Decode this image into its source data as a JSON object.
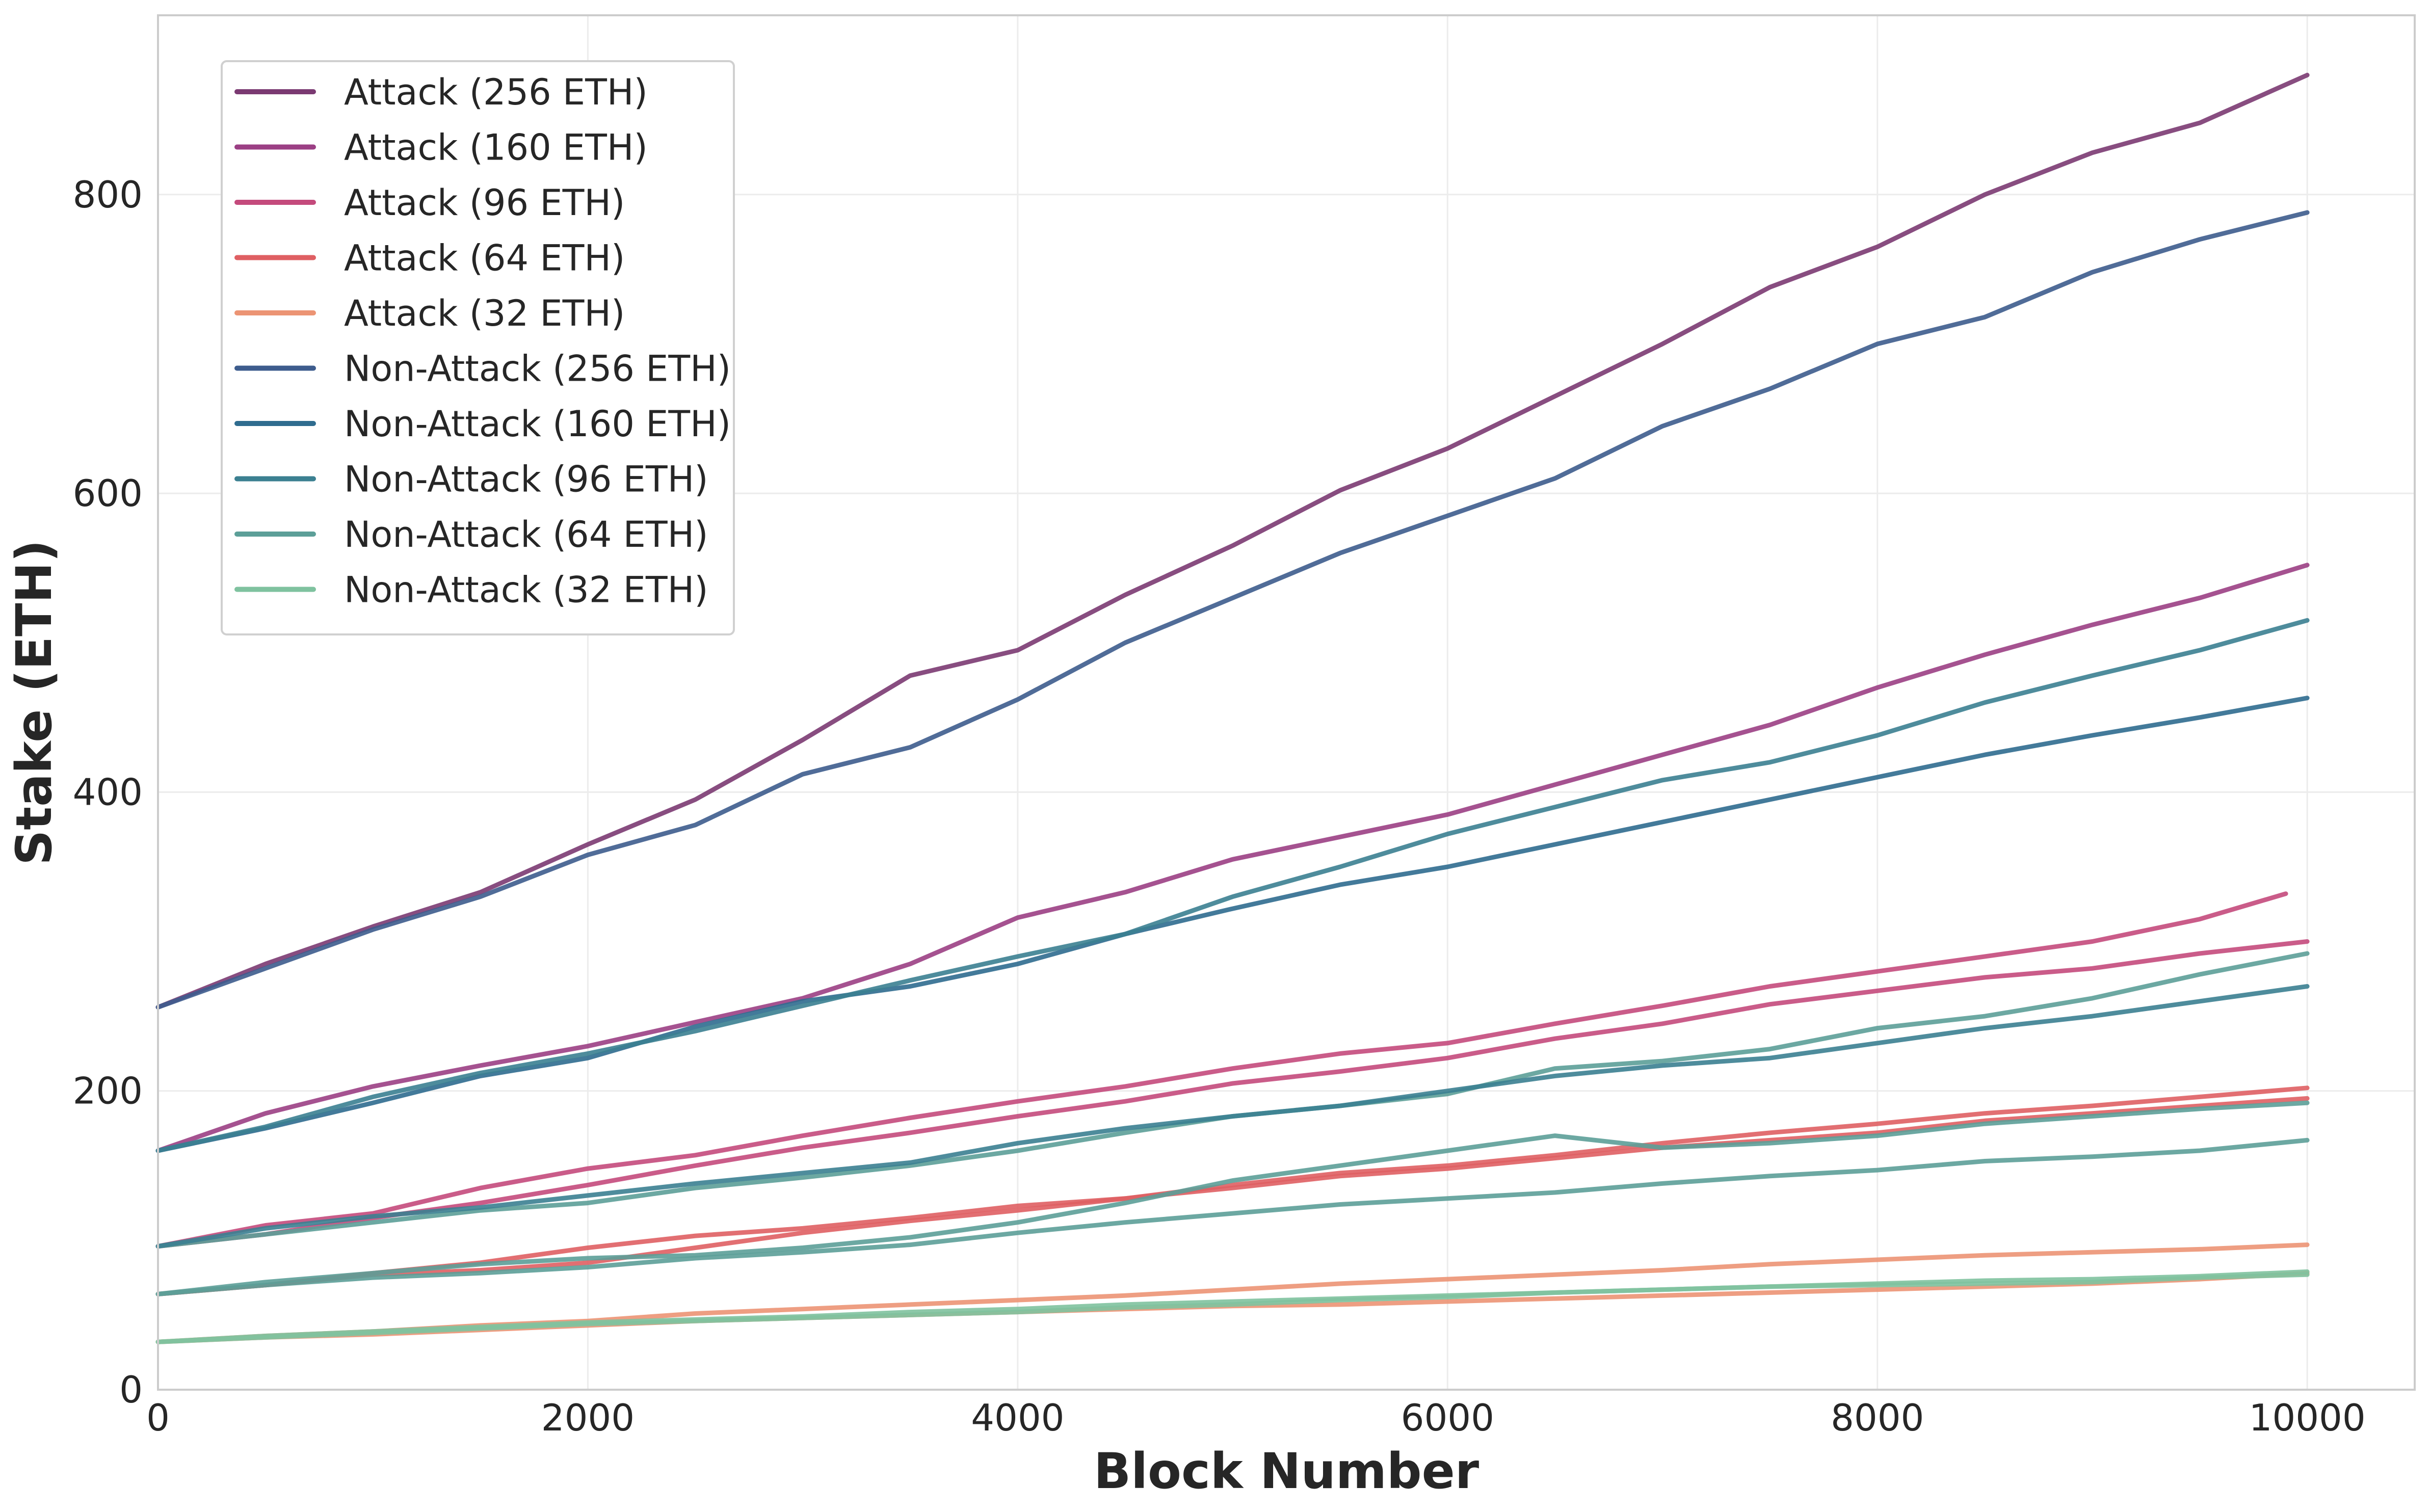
{
  "chart_data": {
    "type": "line",
    "xlabel": "Block Number",
    "ylabel": "Stake (ETH)",
    "xlim": [
      0,
      10500
    ],
    "ylim": [
      0,
      920
    ],
    "xticks": [
      0,
      2000,
      4000,
      6000,
      8000,
      10000
    ],
    "yticks": [
      0,
      200,
      400,
      600,
      800
    ],
    "xtick_labels": [
      "0",
      "2000",
      "4000",
      "6000",
      "8000",
      "10000"
    ],
    "ytick_labels": [
      "0",
      "200",
      "400",
      "600",
      "800"
    ],
    "grid": true,
    "legend_position": "top-left",
    "legend": [
      {
        "label": "Attack (256 ETH)",
        "color": "#7b3a72"
      },
      {
        "label": "Attack (160 ETH)",
        "color": "#9b3f84"
      },
      {
        "label": "Attack (96 ETH)",
        "color": "#c44a7c"
      },
      {
        "label": "Attack (64 ETH)",
        "color": "#df5f63"
      },
      {
        "label": "Attack (32 ETH)",
        "color": "#ec9474"
      },
      {
        "label": "Non-Attack (256 ETH)",
        "color": "#3d5c8d"
      },
      {
        "label": "Non-Attack (160 ETH)",
        "color": "#2f6c8f"
      },
      {
        "label": "Non-Attack (96 ETH)",
        "color": "#3b8091"
      },
      {
        "label": "Non-Attack (64 ETH)",
        "color": "#5c9f98"
      },
      {
        "label": "Non-Attack (32 ETH)",
        "color": "#7fc29f"
      }
    ],
    "series": [
      {
        "color": "#7b3a72",
        "x": [
          0,
          500,
          1000,
          1500,
          2000,
          2500,
          3000,
          3500,
          4000,
          4500,
          5000,
          5500,
          6000,
          6500,
          7000,
          7500,
          8000,
          8500,
          9000,
          9500,
          10000
        ],
        "y": [
          256,
          285,
          310,
          333,
          365,
          395,
          435,
          478,
          495,
          532,
          565,
          602,
          630,
          665,
          700,
          738,
          765,
          800,
          828,
          848,
          880
        ]
      },
      {
        "color": "#3d5c8d",
        "x": [
          0,
          500,
          1000,
          1500,
          2000,
          2500,
          3000,
          3500,
          4000,
          4500,
          5000,
          5500,
          6000,
          6500,
          7000,
          7500,
          8000,
          8500,
          9000,
          9500,
          10000
        ],
        "y": [
          256,
          282,
          308,
          330,
          358,
          378,
          412,
          430,
          462,
          500,
          530,
          560,
          585,
          610,
          645,
          670,
          700,
          718,
          748,
          770,
          788
        ]
      },
      {
        "color": "#9b3f84",
        "x": [
          0,
          500,
          1000,
          1500,
          2000,
          2500,
          3000,
          3500,
          4000,
          4500,
          5000,
          5500,
          6000,
          6500,
          7000,
          7500,
          8000,
          8500,
          9000,
          9500,
          10000
        ],
        "y": [
          160,
          185,
          203,
          217,
          230,
          246,
          262,
          285,
          316,
          333,
          355,
          370,
          385,
          405,
          425,
          445,
          470,
          492,
          512,
          530,
          552
        ]
      },
      {
        "color": "#2f6c8f",
        "x": [
          0,
          500,
          1000,
          1500,
          2000,
          2500,
          3000,
          3500,
          4000,
          4500,
          5000,
          5500,
          6000,
          6500,
          7000,
          7500,
          8000,
          8500,
          9000,
          9500,
          10000
        ],
        "y": [
          160,
          175,
          192,
          210,
          222,
          243,
          260,
          270,
          285,
          305,
          322,
          338,
          350,
          365,
          380,
          395,
          410,
          425,
          438,
          450,
          463
        ]
      },
      {
        "color": "#3b8091",
        "x": [
          0,
          500,
          1000,
          1500,
          2000,
          2500,
          3000,
          3500,
          4000,
          4500,
          5000,
          5500,
          6000,
          6500,
          7000,
          7500,
          8000,
          8500,
          9000,
          9500,
          10000
        ],
        "y": [
          160,
          176,
          196,
          212,
          225,
          240,
          257,
          274,
          290,
          305,
          330,
          350,
          372,
          390,
          408,
          420,
          438,
          460,
          478,
          495,
          515
        ]
      },
      {
        "color": "#c44a7c",
        "x": [
          0,
          500,
          1000,
          1500,
          2000,
          2500,
          3000,
          3500,
          4000,
          4500,
          5000,
          5500,
          6000,
          6500,
          7000,
          7500,
          8000,
          8500,
          9000,
          9500,
          9900
        ],
        "y": [
          96,
          110,
          118,
          135,
          148,
          157,
          170,
          182,
          193,
          203,
          215,
          225,
          232,
          245,
          257,
          270,
          280,
          290,
          300,
          315,
          332
        ]
      },
      {
        "color": "#c44a7c",
        "x": [
          0,
          500,
          1000,
          1500,
          2000,
          2500,
          3000,
          3500,
          4000,
          4500,
          5000,
          5500,
          6000,
          6500,
          7000,
          7500,
          8000,
          8500,
          9000,
          9500,
          10000
        ],
        "y": [
          96,
          104,
          115,
          125,
          137,
          150,
          162,
          172,
          183,
          193,
          205,
          213,
          222,
          235,
          245,
          258,
          267,
          276,
          282,
          292,
          300
        ]
      },
      {
        "color": "#5c9f98",
        "x": [
          0,
          500,
          1000,
          1500,
          2000,
          2500,
          3000,
          3500,
          4000,
          4500,
          5000,
          5500,
          6000,
          6500,
          7000,
          7500,
          8000,
          8500,
          9000,
          9500,
          10000
        ],
        "y": [
          96,
          104,
          112,
          120,
          125,
          135,
          142,
          150,
          160,
          172,
          183,
          190,
          198,
          215,
          220,
          228,
          242,
          250,
          262,
          278,
          292
        ]
      },
      {
        "color": "#3b8091",
        "x": [
          0,
          500,
          1000,
          1500,
          2000,
          2500,
          3000,
          3500,
          4000,
          4500,
          5000,
          5500,
          6000,
          6500,
          7000,
          7500,
          8000,
          8500,
          9000,
          9500,
          10000
        ],
        "y": [
          96,
          108,
          116,
          122,
          130,
          138,
          145,
          152,
          165,
          175,
          183,
          190,
          200,
          210,
          217,
          222,
          232,
          242,
          250,
          260,
          270
        ]
      },
      {
        "color": "#df5f63",
        "x": [
          0,
          500,
          1000,
          1500,
          2000,
          2500,
          3000,
          3500,
          4000,
          4500,
          5000,
          5500,
          6000,
          6500,
          7000,
          7500,
          8000,
          8500,
          9000,
          9500,
          10000
        ],
        "y": [
          64,
          70,
          78,
          85,
          95,
          103,
          108,
          115,
          123,
          128,
          137,
          145,
          150,
          157,
          165,
          172,
          178,
          185,
          190,
          196,
          202
        ]
      },
      {
        "color": "#df5f63",
        "x": [
          0,
          500,
          1000,
          1500,
          2000,
          2500,
          3000,
          3500,
          4000,
          4500,
          5000,
          5500,
          6000,
          6500,
          7000,
          7500,
          8000,
          8500,
          9000,
          9500,
          10000
        ],
        "y": [
          64,
          70,
          77,
          80,
          85,
          95,
          105,
          113,
          120,
          128,
          135,
          143,
          148,
          155,
          162,
          167,
          172,
          180,
          185,
          190,
          195
        ]
      },
      {
        "color": "#5c9f98",
        "x": [
          0,
          500,
          1000,
          1500,
          2000,
          2500,
          3000,
          3500,
          4000,
          4500,
          5000,
          5500,
          6000,
          6500,
          7000,
          7500,
          8000,
          8500,
          9000,
          9500,
          10000
        ],
        "y": [
          64,
          72,
          78,
          84,
          88,
          90,
          95,
          102,
          112,
          125,
          140,
          150,
          160,
          170,
          162,
          165,
          170,
          178,
          183,
          188,
          192
        ]
      },
      {
        "color": "#5c9f98",
        "x": [
          0,
          500,
          1000,
          1500,
          2000,
          2500,
          3000,
          3500,
          4000,
          4500,
          5000,
          5500,
          6000,
          6500,
          7000,
          7500,
          8000,
          8500,
          9000,
          9500,
          10000
        ],
        "y": [
          64,
          70,
          75,
          78,
          82,
          88,
          92,
          97,
          105,
          112,
          118,
          124,
          128,
          132,
          138,
          143,
          147,
          153,
          156,
          160,
          167
        ]
      },
      {
        "color": "#ec9474",
        "x": [
          0,
          500,
          1000,
          1500,
          2000,
          2500,
          3000,
          3500,
          4000,
          4500,
          5000,
          5500,
          6000,
          6500,
          7000,
          7500,
          8000,
          8500,
          9000,
          9500,
          10000
        ],
        "y": [
          32,
          36,
          39,
          43,
          46,
          51,
          54,
          57,
          60,
          63,
          67,
          71,
          74,
          77,
          80,
          84,
          87,
          90,
          92,
          94,
          97
        ]
      },
      {
        "color": "#ec9474",
        "x": [
          0,
          500,
          1000,
          1500,
          2000,
          2500,
          3000,
          3500,
          4000,
          4500,
          5000,
          5500,
          6000,
          6500,
          7000,
          7500,
          8000,
          8500,
          9000,
          9500,
          10000
        ],
        "y": [
          32,
          35,
          37,
          40,
          43,
          46,
          48,
          50,
          52,
          54,
          56,
          57,
          59,
          61,
          63,
          65,
          67,
          69,
          71,
          74,
          78
        ]
      },
      {
        "color": "#7fc29f",
        "x": [
          0,
          500,
          1000,
          1500,
          2000,
          2500,
          3000,
          3500,
          4000,
          4500,
          5000,
          5500,
          6000,
          6500,
          7000,
          7500,
          8000,
          8500,
          9000,
          9500,
          10000
        ],
        "y": [
          32,
          36,
          39,
          42,
          45,
          47,
          49,
          52,
          54,
          57,
          59,
          61,
          63,
          65,
          67,
          69,
          71,
          73,
          74,
          76,
          79
        ]
      },
      {
        "color": "#7fc29f",
        "x": [
          0,
          500,
          1000,
          1500,
          2000,
          2500,
          3000,
          3500,
          4000,
          4500,
          5000,
          5500,
          6000,
          6500,
          7000,
          7500,
          8000,
          8500,
          9000,
          9500,
          10000
        ],
        "y": [
          32,
          35,
          38,
          41,
          44,
          46,
          48,
          50,
          52,
          55,
          57,
          60,
          62,
          65,
          67,
          69,
          70,
          71,
          72,
          75,
          77
        ]
      }
    ]
  }
}
